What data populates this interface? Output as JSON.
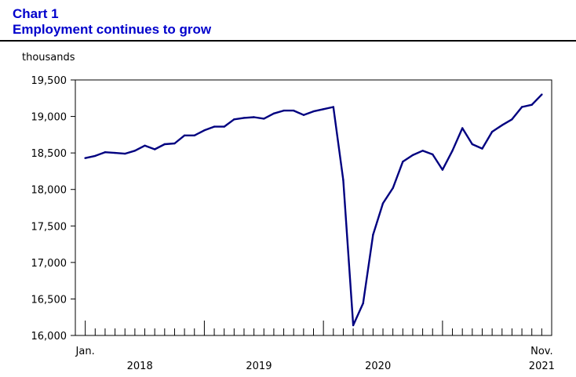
{
  "header": {
    "line1": "Chart 1",
    "line2": "Employment continues to grow"
  },
  "chart_data": {
    "type": "line",
    "title": "Employment continues to grow",
    "ylabel": "thousands",
    "xlabel": "",
    "ylim": [
      16000,
      19500
    ],
    "yticks": [
      16000,
      16500,
      17000,
      17500,
      18000,
      18500,
      19000,
      19500
    ],
    "ytick_labels": [
      "16,000",
      "16,500",
      "17,000",
      "17,500",
      "18,000",
      "18,500",
      "19,000",
      "19,500"
    ],
    "grid": false,
    "color": "#000080",
    "x_start_label": "Jan.",
    "x_end_label": "Nov.",
    "year_labels": [
      "2018",
      "2019",
      "2020",
      "2021"
    ],
    "x": [
      "2018-01",
      "2018-02",
      "2018-03",
      "2018-04",
      "2018-05",
      "2018-06",
      "2018-07",
      "2018-08",
      "2018-09",
      "2018-10",
      "2018-11",
      "2018-12",
      "2019-01",
      "2019-02",
      "2019-03",
      "2019-04",
      "2019-05",
      "2019-06",
      "2019-07",
      "2019-08",
      "2019-09",
      "2019-10",
      "2019-11",
      "2019-12",
      "2020-01",
      "2020-02",
      "2020-03",
      "2020-04",
      "2020-05",
      "2020-06",
      "2020-07",
      "2020-08",
      "2020-09",
      "2020-10",
      "2020-11",
      "2020-12",
      "2021-01",
      "2021-02",
      "2021-03",
      "2021-04",
      "2021-05",
      "2021-06",
      "2021-07",
      "2021-08",
      "2021-09",
      "2021-10",
      "2021-11"
    ],
    "values": [
      18430,
      18460,
      18510,
      18500,
      18490,
      18530,
      18600,
      18550,
      18620,
      18630,
      18740,
      18740,
      18810,
      18860,
      18860,
      18960,
      18980,
      18990,
      18970,
      19040,
      19080,
      19080,
      19020,
      19070,
      19100,
      19130,
      18130,
      16140,
      16440,
      17380,
      17810,
      18020,
      18380,
      18470,
      18530,
      18480,
      18270,
      18530,
      18840,
      18620,
      18560,
      18790,
      18880,
      18960,
      19130,
      19160,
      19300
    ]
  }
}
